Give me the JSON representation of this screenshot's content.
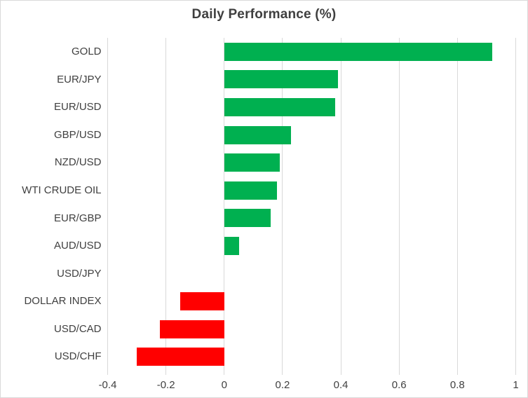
{
  "chart_data": {
    "type": "bar",
    "orientation": "horizontal",
    "title": "Daily Performance (%)",
    "categories": [
      "GOLD",
      "EUR/JPY",
      "EUR/USD",
      "GBP/USD",
      "NZD/USD",
      "WTI CRUDE OIL",
      "EUR/GBP",
      "AUD/USD",
      "USD/JPY",
      "DOLLAR INDEX",
      "USD/CAD",
      "USD/CHF"
    ],
    "values": [
      0.92,
      0.39,
      0.38,
      0.23,
      0.19,
      0.18,
      0.16,
      0.05,
      0.0,
      -0.15,
      -0.22,
      -0.3
    ],
    "xlabel": "",
    "ylabel": "",
    "xlim": [
      -0.4,
      1.0
    ],
    "x_ticks": [
      -0.4,
      -0.2,
      0,
      0.2,
      0.4,
      0.6,
      0.8,
      1
    ],
    "x_tick_labels": [
      "-0.4",
      "-0.2",
      "0",
      "0.2",
      "0.4",
      "0.6",
      "0.8",
      "1"
    ],
    "grid": "vertical-only",
    "legend": "none",
    "colors": {
      "positive": "#00b050",
      "negative": "#ff0000",
      "gridline": "#d9d9d9",
      "border": "#d9d9d9",
      "text": "#404040",
      "title_text": "#3f3f3f",
      "background": "#ffffff"
    }
  }
}
